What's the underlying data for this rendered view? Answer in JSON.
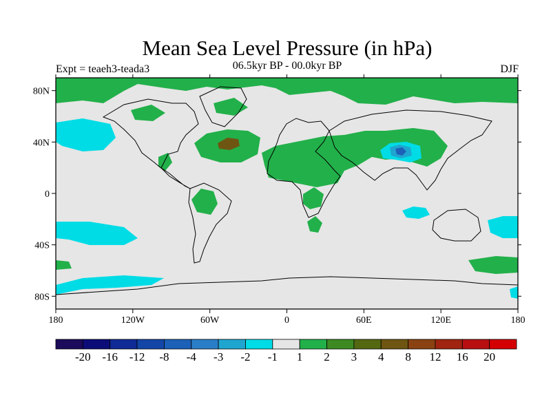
{
  "title": "Mean Sea Level Pressure (in hPa)",
  "subtitle_left": "Expt = teaeh3-teada3",
  "subtitle_center": "06.5kyr BP - 00.0kyr BP",
  "subtitle_right": "DJF",
  "x_axis": {
    "ticks": [
      {
        "value": -180,
        "label": "180"
      },
      {
        "value": -120,
        "label": "120W"
      },
      {
        "value": -60,
        "label": "60W"
      },
      {
        "value": 0,
        "label": "0"
      },
      {
        "value": 60,
        "label": "60E"
      },
      {
        "value": 120,
        "label": "120E"
      },
      {
        "value": 180,
        "label": "180"
      }
    ]
  },
  "y_axis": {
    "ticks": [
      {
        "value": 80,
        "label": "80N"
      },
      {
        "value": 40,
        "label": "40N"
      },
      {
        "value": 0,
        "label": "0"
      },
      {
        "value": -40,
        "label": "40S"
      },
      {
        "value": -80,
        "label": "80S"
      }
    ]
  },
  "colorbar": {
    "colors": [
      "#1c0a5a",
      "#0c0c78",
      "#102a96",
      "#1446a8",
      "#1c60b8",
      "#2a7ec8",
      "#1ea6d0",
      "#00dce6",
      "#e6e6e6",
      "#22b04a",
      "#3e8a22",
      "#546812",
      "#6e5612",
      "#8a4212",
      "#a02410",
      "#b81010",
      "#d40000"
    ],
    "labels": [
      "-20",
      "-16",
      "-12",
      "-8",
      "-4",
      "-3",
      "-2",
      "-1",
      "1",
      "2",
      "3",
      "4",
      "8",
      "12",
      "16",
      "20"
    ]
  },
  "map_colors": {
    "background": "#e6e6e6",
    "pos_light": "#22b04a",
    "pos_dark": "#3e8a22",
    "pos_strong": "#6e5612",
    "neg_light": "#00dce6",
    "neg_mid": "#1ea6d0",
    "neg_dark": "#1c60b8",
    "coast": "#000000"
  }
}
